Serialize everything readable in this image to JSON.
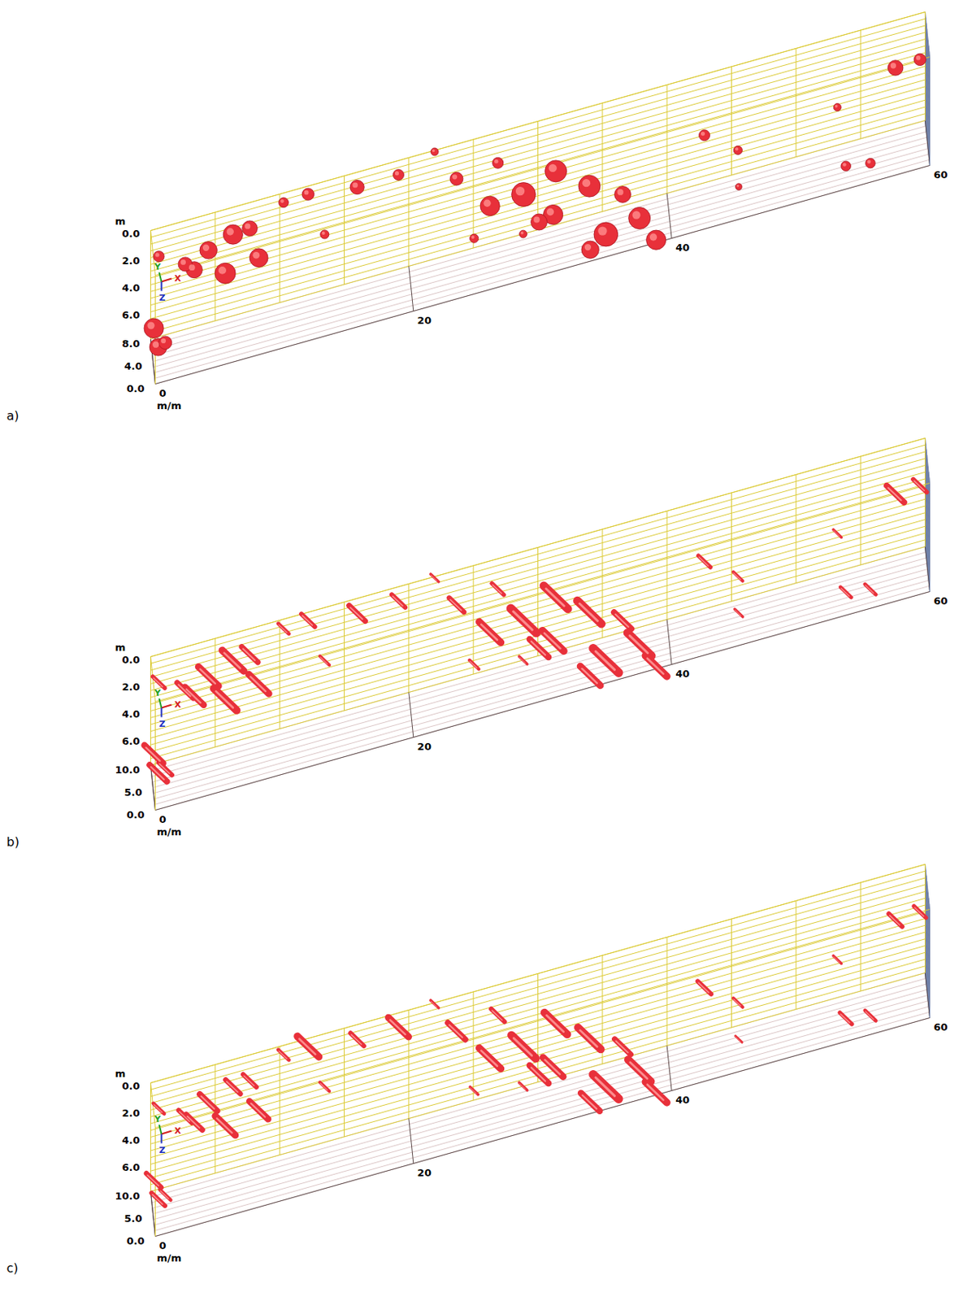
{
  "chart_data": [
    {
      "type": "scatter3d",
      "panel": "a)",
      "xlabel": "m/m",
      "zlabel": "m",
      "gizmo_labels": [
        "X",
        "Y",
        "Z"
      ],
      "color": "#e8303a",
      "marker": "circle",
      "grid": true,
      "xlim": [
        0,
        60
      ],
      "xticks": [
        0,
        20,
        40,
        60
      ],
      "ylim": [
        0,
        8
      ],
      "yticks": [
        {
          "value": 0,
          "label": "0.0"
        },
        {
          "value": 4,
          "label": "4.0"
        },
        {
          "value": 8,
          "label": "8.0"
        }
      ],
      "zlim": [
        0,
        8
      ],
      "zticks": [
        {
          "value": 0,
          "label": "0.0"
        },
        {
          "value": 2,
          "label": "2.0"
        },
        {
          "value": 4,
          "label": "4.0"
        },
        {
          "value": 6,
          "label": "6.0"
        }
      ],
      "points": {
        "x": [
          0.2,
          0.5,
          1.0,
          4.3,
          6.2,
          8.2,
          5.6,
          3.2,
          7.5,
          0.5,
          10.3,
          12.2,
          13.3,
          16.0,
          19.2,
          22.0,
          23.7,
          26.9,
          28.8,
          31.3,
          33.9,
          26.2,
          30.0,
          35.0,
          37.6,
          38.8,
          33.7,
          36.3,
          24.7,
          28.5,
          42.9,
          45.5,
          45.2,
          53.2,
          53.5,
          55.4,
          57.7,
          59.6,
          2.5,
          31.0
        ],
        "y": [
          7,
          6,
          5,
          4,
          4,
          4,
          4,
          4,
          4,
          5,
          8,
          8,
          4,
          8,
          8,
          8,
          8,
          8,
          6,
          6,
          6,
          6,
          6,
          2,
          2,
          0,
          0,
          2,
          0,
          0,
          8,
          8,
          0,
          8,
          0,
          0,
          8,
          8,
          4,
          4
        ],
        "z": [
          6.85,
          7.9,
          7.3,
          0.95,
          0.3,
          2.56,
          3.0,
          2.1,
          0.2,
          0.8,
          0.7,
          0.6,
          2.2,
          1.1,
          1.05,
          0.1,
          2.55,
          2.24,
          4.25,
          3.2,
          5.0,
          4.4,
          6.6,
          7.2,
          6.7,
          7.8,
          7.15,
          4.6,
          3.9,
          4.6,
          4.5,
          6.3,
          5.6,
          5.2,
          6.3,
          6.6,
          3.5,
          3.4,
          1.5,
          5.5
        ],
        "size": [
          1.8,
          1.6,
          1.2,
          1.6,
          1.8,
          1.7,
          1.9,
          1.5,
          1.4,
          1.0,
          0.9,
          1.1,
          0.8,
          1.3,
          1.0,
          0.7,
          1.2,
          1.0,
          2.2,
          2.0,
          2.0,
          1.8,
          1.5,
          2.2,
          2.0,
          1.8,
          1.6,
          1.5,
          0.8,
          0.7,
          1.0,
          0.8,
          0.6,
          0.7,
          0.9,
          0.9,
          1.4,
          1.1,
          1.3,
          1.8
        ]
      }
    },
    {
      "type": "scatter3d",
      "panel": "b)",
      "xlabel": "m/m",
      "zlabel": "m",
      "gizmo_labels": [
        "X",
        "Y",
        "Z"
      ],
      "color": "#e8303a",
      "marker": "streak",
      "grid": true,
      "xlim": [
        0,
        60
      ],
      "xticks": [
        0,
        20,
        40,
        60
      ],
      "ylim": [
        0,
        10
      ],
      "yticks": [
        {
          "value": 0,
          "label": "0.0"
        },
        {
          "value": 5,
          "label": "5.0"
        },
        {
          "value": 10,
          "label": "10.0"
        }
      ],
      "zlim": [
        0,
        8
      ],
      "zticks": [
        {
          "value": 0,
          "label": "0.0"
        },
        {
          "value": 2,
          "label": "2.0"
        },
        {
          "value": 4,
          "label": "4.0"
        },
        {
          "value": 6,
          "label": "6.0"
        }
      ],
      "points": {
        "x": [
          0.2,
          0.5,
          1.0,
          4.3,
          6.2,
          8.2,
          5.6,
          3.2,
          7.5,
          0.5,
          10.3,
          12.2,
          13.3,
          16.0,
          19.2,
          22.0,
          23.7,
          26.9,
          28.8,
          31.3,
          33.9,
          26.2,
          30.0,
          35.0,
          37.6,
          38.8,
          33.7,
          36.3,
          24.7,
          28.5,
          42.9,
          45.5,
          45.2,
          53.2,
          53.5,
          55.4,
          57.7,
          59.6,
          2.5,
          31.0
        ],
        "y": [
          8.8,
          7.5,
          6.3,
          5,
          5,
          5,
          5,
          5,
          5,
          6.3,
          10,
          10,
          5,
          10,
          10,
          10,
          10,
          10,
          7.5,
          7.5,
          7.5,
          7.5,
          7.5,
          2.5,
          2.5,
          0,
          0,
          2.5,
          0,
          0,
          10,
          10,
          0,
          10,
          0,
          0,
          10,
          10,
          5,
          5
        ],
        "z": [
          6.85,
          7.9,
          7.3,
          0.95,
          0.3,
          2.56,
          3.0,
          2.1,
          0.2,
          0.8,
          0.7,
          0.6,
          2.2,
          1.1,
          1.05,
          0.1,
          2.55,
          2.24,
          4.25,
          3.2,
          5.0,
          4.4,
          6.6,
          7.2,
          6.7,
          7.8,
          7.15,
          4.6,
          3.9,
          4.6,
          4.5,
          6.3,
          5.6,
          5.2,
          6.3,
          6.6,
          3.5,
          3.4,
          1.5,
          5.5
        ],
        "size": [
          1.4,
          1.3,
          1.0,
          1.5,
          1.6,
          1.5,
          1.7,
          1.4,
          1.2,
          0.9,
          0.8,
          1.0,
          0.7,
          1.2,
          1.0,
          0.6,
          1.1,
          0.9,
          1.9,
          1.8,
          1.8,
          1.6,
          1.4,
          1.9,
          1.8,
          1.6,
          1.5,
          1.3,
          0.7,
          0.6,
          0.9,
          0.7,
          0.6,
          0.6,
          0.8,
          0.8,
          1.3,
          1.0,
          1.2,
          1.6
        ]
      }
    },
    {
      "type": "scatter3d",
      "panel": "c)",
      "xlabel": "m/m",
      "zlabel": "m",
      "gizmo_labels": [
        "X",
        "Y",
        "Z"
      ],
      "color": "#e8303a",
      "marker": "streak",
      "grid": true,
      "xlim": [
        0,
        60
      ],
      "xticks": [
        0,
        20,
        40,
        60
      ],
      "ylim": [
        0,
        10
      ],
      "yticks": [
        {
          "value": 0,
          "label": "0.0"
        },
        {
          "value": 5,
          "label": "5.0"
        },
        {
          "value": 10,
          "label": "10.0"
        }
      ],
      "zlim": [
        0,
        8
      ],
      "zticks": [
        {
          "value": 0,
          "label": "0.0"
        },
        {
          "value": 2,
          "label": "2.0"
        },
        {
          "value": 4,
          "label": "4.0"
        },
        {
          "value": 6,
          "label": "6.0"
        }
      ],
      "points": {
        "x": [
          0.2,
          0.5,
          1.0,
          4.3,
          6.2,
          8.2,
          5.6,
          3.2,
          7.5,
          0.5,
          10.3,
          12.2,
          13.3,
          16.0,
          19.2,
          22.0,
          23.7,
          26.9,
          28.8,
          31.3,
          33.9,
          26.2,
          30.0,
          35.0,
          37.6,
          38.8,
          33.7,
          36.3,
          24.7,
          28.5,
          42.9,
          45.5,
          45.2,
          53.2,
          53.5,
          55.4,
          57.7,
          59.6,
          2.5,
          31.0
        ],
        "y": [
          8.8,
          7.5,
          6.3,
          5,
          5,
          5,
          5,
          5,
          5,
          6.3,
          10,
          10,
          5,
          10,
          10,
          10,
          10,
          10,
          7.5,
          7.5,
          7.5,
          7.5,
          7.5,
          2.5,
          2.5,
          0,
          0,
          2.5,
          0,
          0,
          10,
          10,
          0,
          10,
          0,
          0,
          10,
          10,
          5,
          5
        ],
        "z": [
          6.85,
          7.9,
          7.3,
          0.95,
          0.3,
          2.56,
          3.0,
          2.1,
          0.2,
          0.8,
          0.7,
          0.6,
          2.2,
          1.1,
          1.05,
          0.1,
          2.55,
          2.24,
          4.25,
          3.2,
          5.0,
          4.4,
          6.6,
          7.2,
          6.7,
          7.8,
          7.15,
          4.6,
          3.9,
          4.6,
          4.5,
          6.3,
          5.6,
          5.2,
          6.3,
          6.6,
          3.5,
          3.4,
          1.5,
          5.5
        ],
        "size": [
          1.1,
          1.0,
          0.8,
          1.3,
          1.1,
          1.4,
          1.5,
          1.2,
          1.0,
          0.8,
          0.8,
          1.6,
          0.7,
          1.0,
          1.5,
          0.6,
          1.3,
          1.0,
          1.8,
          1.7,
          1.7,
          1.6,
          1.4,
          1.9,
          1.7,
          1.6,
          1.4,
          1.2,
          0.6,
          0.6,
          1.0,
          0.7,
          0.5,
          0.6,
          0.9,
          0.8,
          1.0,
          0.9,
          1.0,
          1.5
        ]
      }
    }
  ]
}
